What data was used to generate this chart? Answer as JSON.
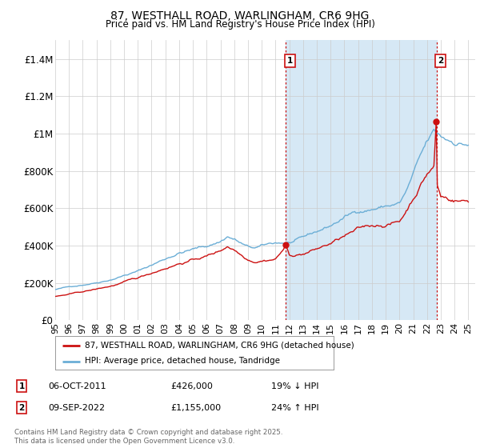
{
  "title_line1": "87, WESTHALL ROAD, WARLINGHAM, CR6 9HG",
  "title_line2": "Price paid vs. HM Land Registry's House Price Index (HPI)",
  "legend_line1": "87, WESTHALL ROAD, WARLINGHAM, CR6 9HG (detached house)",
  "legend_line2": "HPI: Average price, detached house, Tandridge",
  "annotation1_label": "1",
  "annotation1_date": "06-OCT-2011",
  "annotation1_price": "£426,000",
  "annotation1_hpi": "19% ↓ HPI",
  "annotation2_label": "2",
  "annotation2_date": "09-SEP-2022",
  "annotation2_price": "£1,155,000",
  "annotation2_hpi": "24% ↑ HPI",
  "footer": "Contains HM Land Registry data © Crown copyright and database right 2025.\nThis data is licensed under the Open Government Licence v3.0.",
  "hpi_color": "#6baed6",
  "hpi_fill_color": "#d6e8f5",
  "price_color": "#cc1111",
  "annotation_color": "#cc1111",
  "background_color": "#ffffff",
  "grid_color": "#cccccc",
  "sale1_year": 2011.76,
  "sale1_price": 426000,
  "sale2_year": 2022.69,
  "sale2_price": 1155000,
  "ylim": [
    0,
    1500000
  ],
  "yticks": [
    0,
    200000,
    400000,
    600000,
    800000,
    1000000,
    1200000,
    1400000
  ],
  "ytick_labels": [
    "£0",
    "£200K",
    "£400K",
    "£600K",
    "£800K",
    "£1M",
    "£1.2M",
    "£1.4M"
  ],
  "xlim_start": 1995,
  "xlim_end": 2025.5,
  "xtick_years": [
    1995,
    1996,
    1997,
    1998,
    1999,
    2000,
    2001,
    2002,
    2003,
    2004,
    2005,
    2006,
    2007,
    2008,
    2009,
    2010,
    2011,
    2012,
    2013,
    2014,
    2015,
    2016,
    2017,
    2018,
    2019,
    2020,
    2021,
    2022,
    2023,
    2024,
    2025
  ],
  "xtick_labels": [
    "95",
    "96",
    "97",
    "98",
    "99",
    "00",
    "01",
    "02",
    "03",
    "04",
    "05",
    "06",
    "07",
    "08",
    "09",
    "10",
    "11",
    "12",
    "13",
    "14",
    "15",
    "16",
    "17",
    "18",
    "19",
    "20",
    "21",
    "22",
    "23",
    "24",
    "25"
  ]
}
